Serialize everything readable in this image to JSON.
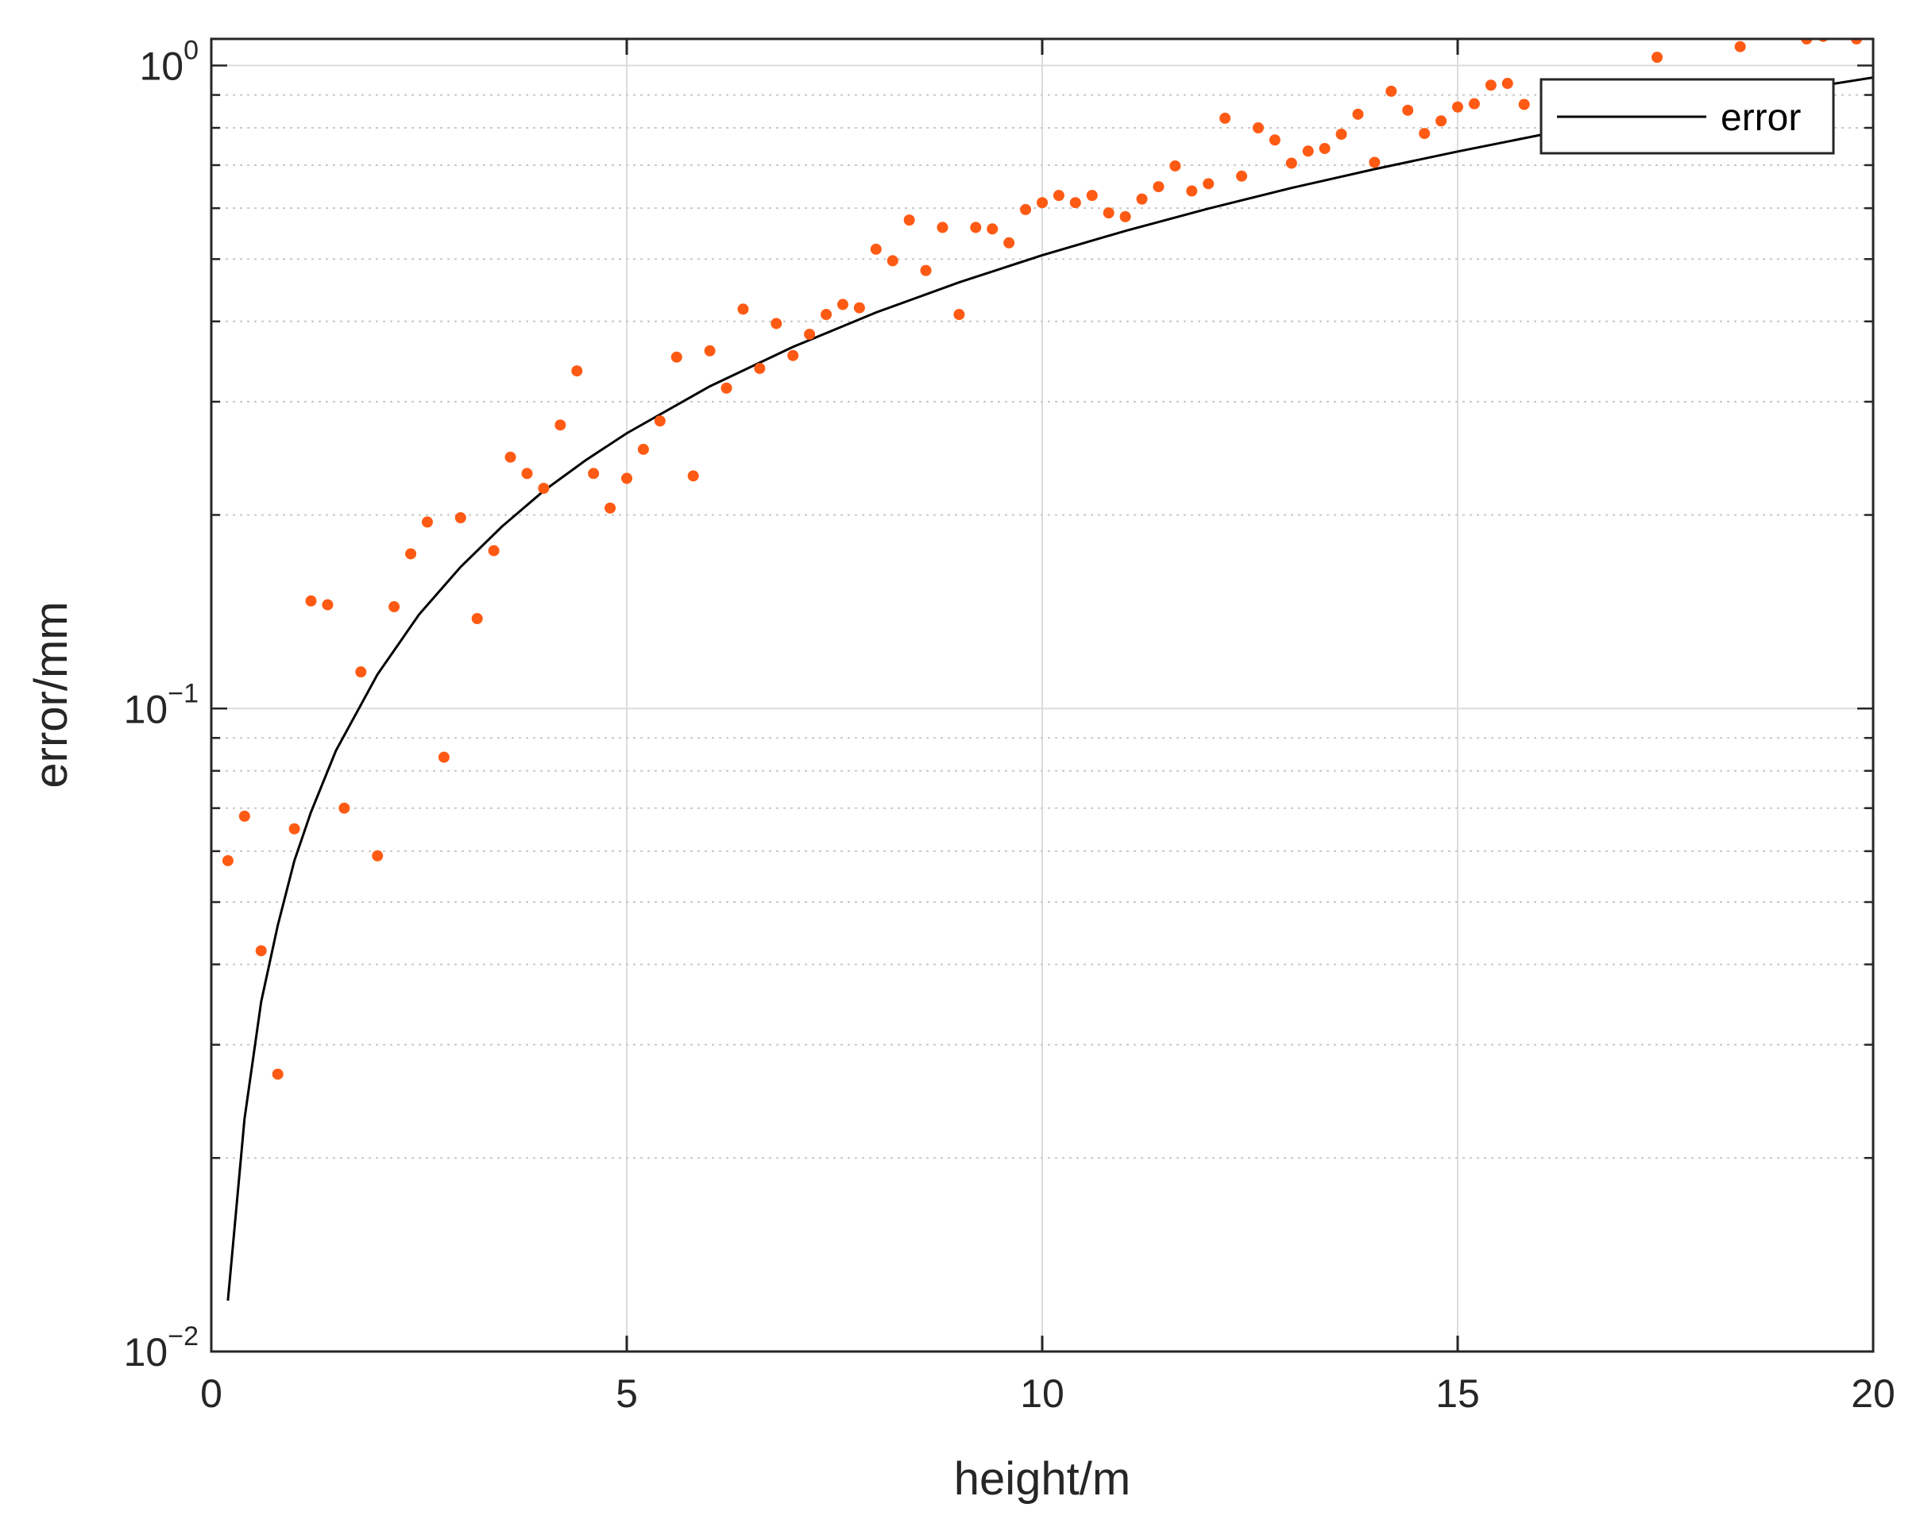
{
  "chart_data": {
    "type": "scatter",
    "xlabel": "height/m",
    "ylabel": "error/mm",
    "xlim": [
      0,
      20
    ],
    "ylim": [
      0.01,
      1.1
    ],
    "yscale": "log",
    "grid": true,
    "x_ticks": [
      {
        "value": 0,
        "label": "0"
      },
      {
        "value": 5,
        "label": "5"
      },
      {
        "value": 10,
        "label": "10"
      },
      {
        "value": 15,
        "label": "15"
      },
      {
        "value": 20,
        "label": "20"
      }
    ],
    "y_ticks": [
      {
        "value": 0.01,
        "base": "10",
        "exp": "−2"
      },
      {
        "value": 0.1,
        "base": "10",
        "exp": "−1"
      },
      {
        "value": 1,
        "base": "10",
        "exp": "0"
      }
    ],
    "legend": {
      "position": "top-right",
      "entries": [
        "error"
      ]
    },
    "colors": {
      "line": "#000000",
      "points": "#ff5a14",
      "grid": "#dcdcdc",
      "axis": "#262626"
    },
    "series": [
      {
        "name": "error",
        "kind": "line",
        "x": [
          0.2,
          0.4,
          0.6,
          0.8,
          1,
          1.2,
          1.5,
          2,
          2.5,
          3,
          3.5,
          4,
          4.5,
          5,
          6,
          7,
          8,
          9,
          10,
          11,
          12,
          13,
          14,
          15,
          16,
          17,
          18,
          19,
          20
        ],
        "y": [
          0.012,
          0.023,
          0.035,
          0.046,
          0.058,
          0.069,
          0.086,
          0.113,
          0.14,
          0.166,
          0.192,
          0.218,
          0.243,
          0.268,
          0.317,
          0.365,
          0.413,
          0.46,
          0.507,
          0.553,
          0.599,
          0.645,
          0.69,
          0.735,
          0.78,
          0.825,
          0.869,
          0.914,
          0.958
        ]
      },
      {
        "kind": "scatter",
        "x": [
          0.2,
          0.4,
          0.6,
          0.8,
          1.0,
          1.2,
          1.4,
          1.6,
          1.8,
          2.0,
          2.2,
          2.4,
          2.6,
          2.8,
          3.0,
          3.2,
          3.4,
          3.6,
          3.8,
          4.0,
          4.2,
          4.4,
          4.6,
          4.8,
          5.0,
          5.2,
          5.4,
          5.6,
          5.8,
          6.0,
          6.2,
          6.4,
          6.6,
          6.8,
          7.0,
          7.2,
          7.4,
          7.6,
          7.8,
          8.0,
          8.2,
          8.4,
          8.6,
          8.8,
          9.0,
          9.2,
          9.4,
          9.6,
          9.8,
          10.0,
          10.2,
          10.4,
          10.6,
          10.8,
          11.0,
          11.2,
          11.4,
          11.6,
          11.8,
          12.0,
          12.2,
          12.4,
          12.6,
          12.8,
          13.0,
          13.2,
          13.4,
          13.6,
          13.8,
          14.0,
          14.2,
          14.4,
          14.6,
          14.8,
          15.0,
          15.2,
          15.4,
          15.6,
          15.8,
          17.4,
          18.4,
          18.6,
          18.8,
          19.0,
          19.2,
          19.4,
          19.6,
          19.8,
          20.0
        ],
        "y": [
          0.058,
          0.068,
          0.042,
          0.027,
          0.065,
          0.147,
          0.145,
          0.07,
          0.114,
          0.059,
          0.144,
          0.174,
          0.195,
          0.084,
          0.198,
          0.138,
          0.176,
          0.246,
          0.232,
          0.22,
          0.276,
          0.335,
          0.232,
          0.205,
          0.228,
          0.253,
          0.28,
          0.352,
          0.23,
          0.36,
          0.315,
          0.418,
          0.338,
          0.397,
          0.354,
          0.382,
          0.41,
          0.425,
          0.42,
          0.518,
          0.497,
          0.575,
          0.48,
          0.56,
          0.41,
          0.56,
          0.557,
          0.53,
          0.597,
          0.612,
          0.628,
          0.612,
          0.628,
          0.59,
          0.582,
          0.62,
          0.648,
          0.698,
          0.638,
          0.655,
          0.828,
          0.673,
          0.8,
          0.766,
          0.705,
          0.736,
          0.743,
          0.782,
          0.84,
          0.707,
          0.912,
          0.852,
          0.784,
          0.82,
          0.862,
          0.872,
          0.932,
          0.938,
          0.87,
          1.03,
          1.07,
          1.21,
          1.2,
          1.12,
          1.1,
          1.11,
          1.14,
          1.1,
          1.25
        ]
      }
    ]
  }
}
